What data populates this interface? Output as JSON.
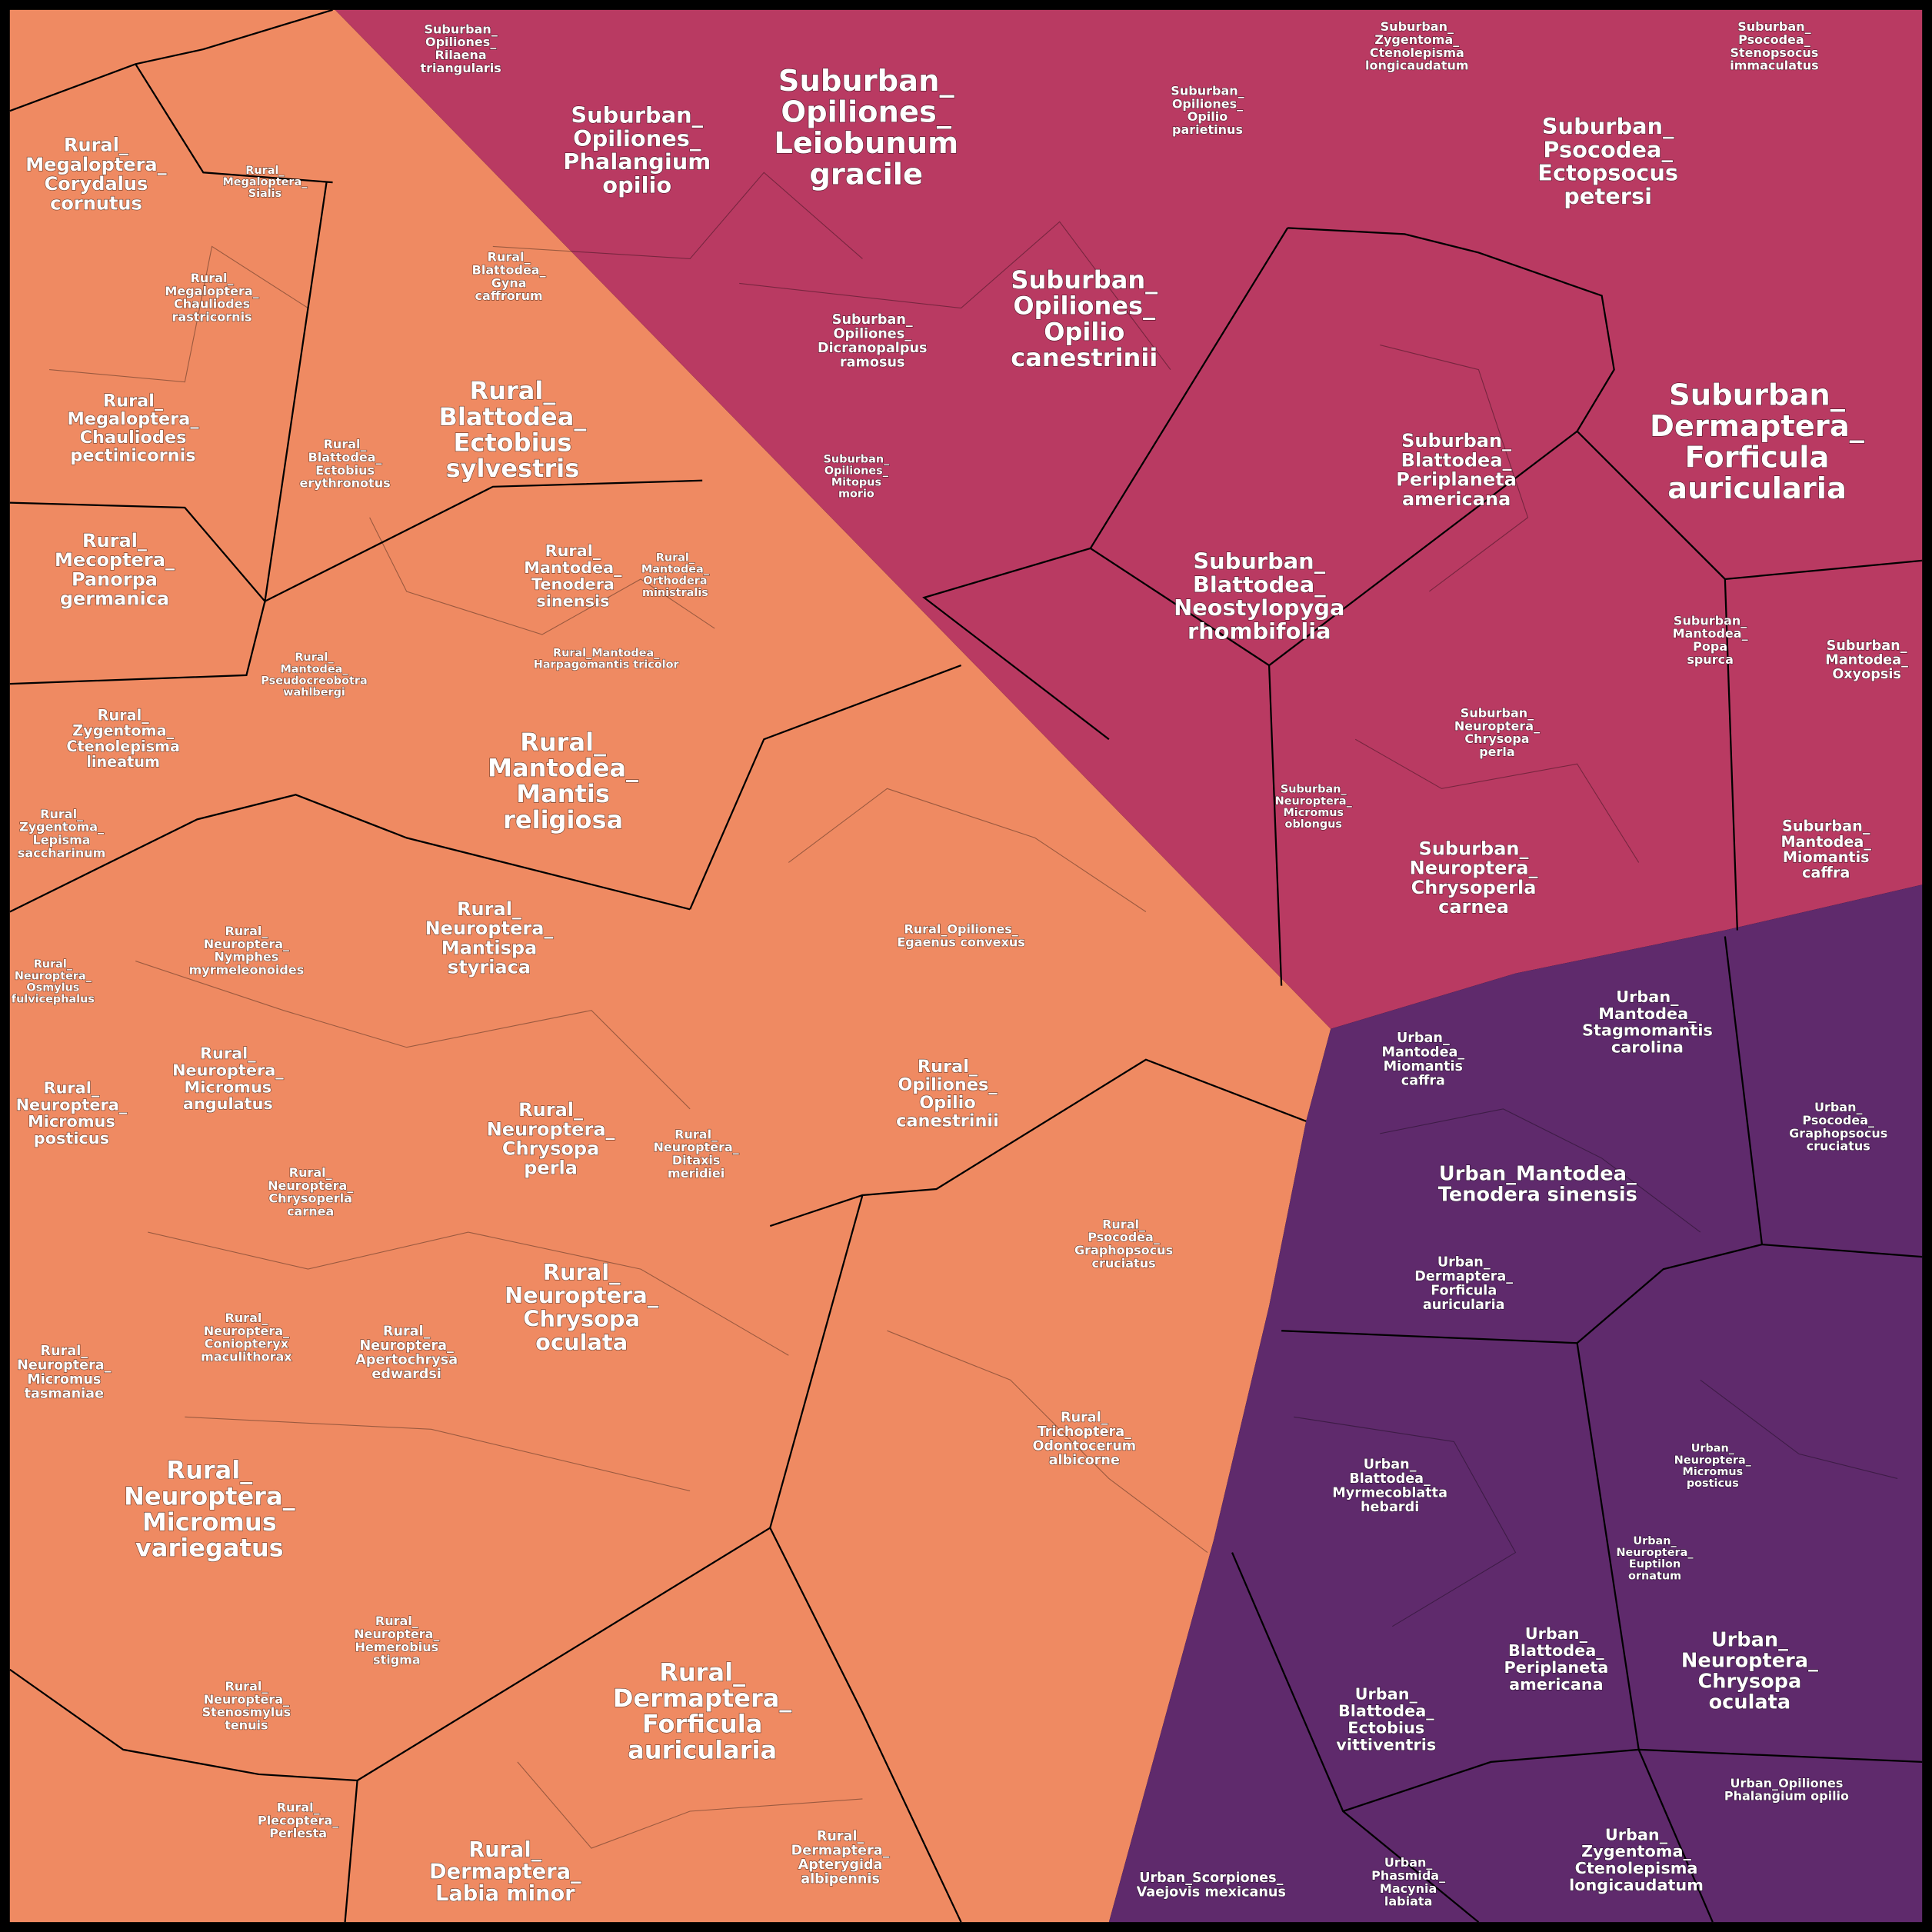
{
  "rural": [
    [
      "Rural_",
      "Megaloptera_",
      "Corydalus",
      "cornutus"
    ],
    [
      "Rural_",
      "Megaloptera_",
      "Sialis"
    ],
    [
      "Rural_",
      "Megaloptera_",
      "Chauliodes",
      "rastricornis"
    ],
    [
      "Rural_",
      "Megaloptera_",
      "Chauliodes",
      "pectinicornis"
    ],
    [
      "Rural_",
      "Mecoptera_",
      "Panorpa",
      "germanica"
    ],
    [
      "Rural_",
      "Zygentoma_",
      "Ctenolepisma",
      "lineatum"
    ],
    [
      "Rural_",
      "Zygentoma_",
      "Lepisma",
      "saccharinum"
    ],
    [
      "Rural_",
      "Blattodea_",
      "Ectobius",
      "sylvestris"
    ],
    [
      "Rural_",
      "Blattodea_",
      "Ectobius",
      "erythronotus"
    ],
    [
      "Rural_",
      "Blattodea_",
      "Gyna",
      "caffrorum"
    ],
    [
      "Rural_",
      "Mantodea_",
      "Tenodera",
      "sinensis"
    ],
    [
      "Rural_",
      "Mantodea_",
      "Mantis",
      "religiosa"
    ],
    [
      "Rural_",
      "Mantodea_",
      "Pseudocreobotra",
      "wahlbergi"
    ],
    [
      "Rural_",
      "Mantodea_",
      "Orthodera",
      "ministralis"
    ],
    [
      "Rural_Mantodea_",
      "Harpagomantis tricolor"
    ],
    [
      "Rural_",
      "Neuroptera_",
      "Mantispa",
      "styriaca"
    ],
    [
      "Rural_",
      "Neuroptera_",
      "Nymphes",
      "myrmeleonoides"
    ],
    [
      "Rural_",
      "Neuroptera_",
      "Osmylus",
      "fulvicephalus"
    ],
    [
      "Rural_",
      "Neuroptera_",
      "Micromus",
      "angulatus"
    ],
    [
      "Rural_",
      "Neuroptera_",
      "Micromus",
      "posticus"
    ],
    [
      "Rural_",
      "Neuroptera_",
      "Chrysopa",
      "perla"
    ],
    [
      "Rural_",
      "Neuroptera_",
      "Ditaxis",
      "meridiei"
    ],
    [
      "Rural_",
      "Neuroptera_",
      "Chrysoperla",
      "carnea"
    ],
    [
      "Rural_",
      "Neuroptera_",
      "Chrysopa",
      "oculata"
    ],
    [
      "Rural_",
      "Neuroptera_",
      "Micromus",
      "tasmaniae"
    ],
    [
      "Rural_",
      "Neuroptera_",
      "Micromus",
      "variegatus"
    ],
    [
      "Rural_",
      "Neuroptera_",
      "Apertochrysa",
      "edwardsi"
    ],
    [
      "Rural_",
      "Neuroptera_",
      "Coniopteryx",
      "maculithorax"
    ],
    [
      "Rural_",
      "Dermaptera_",
      "Forficula",
      "auricularia"
    ],
    [
      "Rural_",
      "Dermaptera_",
      "Labia minor"
    ],
    [
      "Rural_",
      "Dermaptera_",
      "Apterygida",
      "albipennis"
    ],
    [
      "Rural_",
      "Opiliones_",
      "Opilio",
      "canestrinii"
    ],
    [
      "Rural_",
      "Trichoptera_",
      "Odontocerum",
      "albicorne"
    ],
    [
      "Rural_",
      "Neuroptera_",
      "Stenosmylus",
      "tenuis"
    ],
    [
      "Rural_",
      "Plecoptera_",
      "Perlesta"
    ],
    [
      "Rural_",
      "Neuroptera_",
      "Hemerobius",
      "stigma"
    ],
    [
      "Rural_Opiliones_",
      "Egaenus convexus"
    ],
    [
      "Rural_",
      "Psocodea_",
      "Graphopsocus",
      "cruciatus"
    ]
  ],
  "suburban": [
    [
      "Suburban_",
      "Opiliones_",
      "Leiobunum",
      "gracile"
    ],
    [
      "Suburban_",
      "Opiliones_",
      "Phalangium",
      "opilio"
    ],
    [
      "Suburban_",
      "Opiliones_",
      "Rilaena",
      "triangularis"
    ],
    [
      "Suburban_",
      "Opiliones_",
      "Opilio",
      "canestrinii"
    ],
    [
      "Suburban_",
      "Opiliones_",
      "Dicranopalpus",
      "ramosus"
    ],
    [
      "Suburban_",
      "Opiliones_",
      "Mitopus",
      "morio"
    ],
    [
      "Suburban_",
      "Psocodea_",
      "Ectopsocus",
      "petersi"
    ],
    [
      "Suburban_",
      "Dermaptera_",
      "Forficula",
      "auricularia"
    ],
    [
      "Suburban_",
      "Blattodea_",
      "Periplaneta",
      "americana"
    ],
    [
      "Suburban_",
      "Blattodea_",
      "Neostylopyga",
      "rhombifolia"
    ],
    [
      "Suburban_",
      "Neuroptera_",
      "Chrysoperla",
      "carnea"
    ],
    [
      "Suburban_",
      "Mantodea_",
      "Oxyopsis"
    ],
    [
      "Suburban_",
      "Mantodea_",
      "Miomantis",
      "caffra"
    ],
    [
      "Suburban_",
      "Zygentoma_",
      "Ctenolepisma",
      "longicaudatum"
    ],
    [
      "Suburban_",
      "Psocodea_",
      "Stenopsocus",
      "immaculatus"
    ],
    [
      "Suburban_",
      "Opiliones_",
      "Opilio",
      "parietinus"
    ],
    [
      "Suburban_",
      "Neuroptera_",
      "Micromus",
      "oblongus"
    ],
    [
      "Suburban_",
      "Neuroptera_",
      "Chrysopa",
      "perla"
    ],
    [
      "Suburban_",
      "Mantodea_",
      "Popa",
      "spurca"
    ]
  ],
  "urban": [
    [
      "Urban_Mantodea_",
      "Tenodera sinensis"
    ],
    [
      "Urban_",
      "Mantodea_",
      "Stagmomantis",
      "carolina"
    ],
    [
      "Urban_",
      "Mantodea_",
      "Miomantis",
      "caffra"
    ],
    [
      "Urban_",
      "Dermaptera_",
      "Forficula",
      "auricularia"
    ],
    [
      "Urban_",
      "Neuroptera_",
      "Chrysopa",
      "oculata"
    ],
    [
      "Urban_",
      "Blattodea_",
      "Periplaneta",
      "americana"
    ],
    [
      "Urban_",
      "Blattodea_",
      "Ectobius",
      "vittiventris"
    ],
    [
      "Urban_",
      "Blattodea_",
      "Myrmecoblatta",
      "hebardi"
    ],
    [
      "Urban_",
      "Zygentoma_",
      "Ctenolepisma",
      "longicaudatum"
    ],
    [
      "Urban_Opiliones",
      "Phalangium opilio"
    ],
    [
      "Urban_Scorpiones_",
      "Vaejovis mexicanus"
    ],
    [
      "Urban_",
      "Phasmida_",
      "Macynia",
      "labiata"
    ],
    [
      "Urban_",
      "Psocodea_",
      "Graphopsocus",
      "cruciatus"
    ],
    [
      "Urban_",
      "Neuroptera_",
      "Micromus",
      "posticus"
    ],
    [
      "Urban_",
      "Neuroptera_",
      "Euptilon",
      "ornatum"
    ]
  ]
}
